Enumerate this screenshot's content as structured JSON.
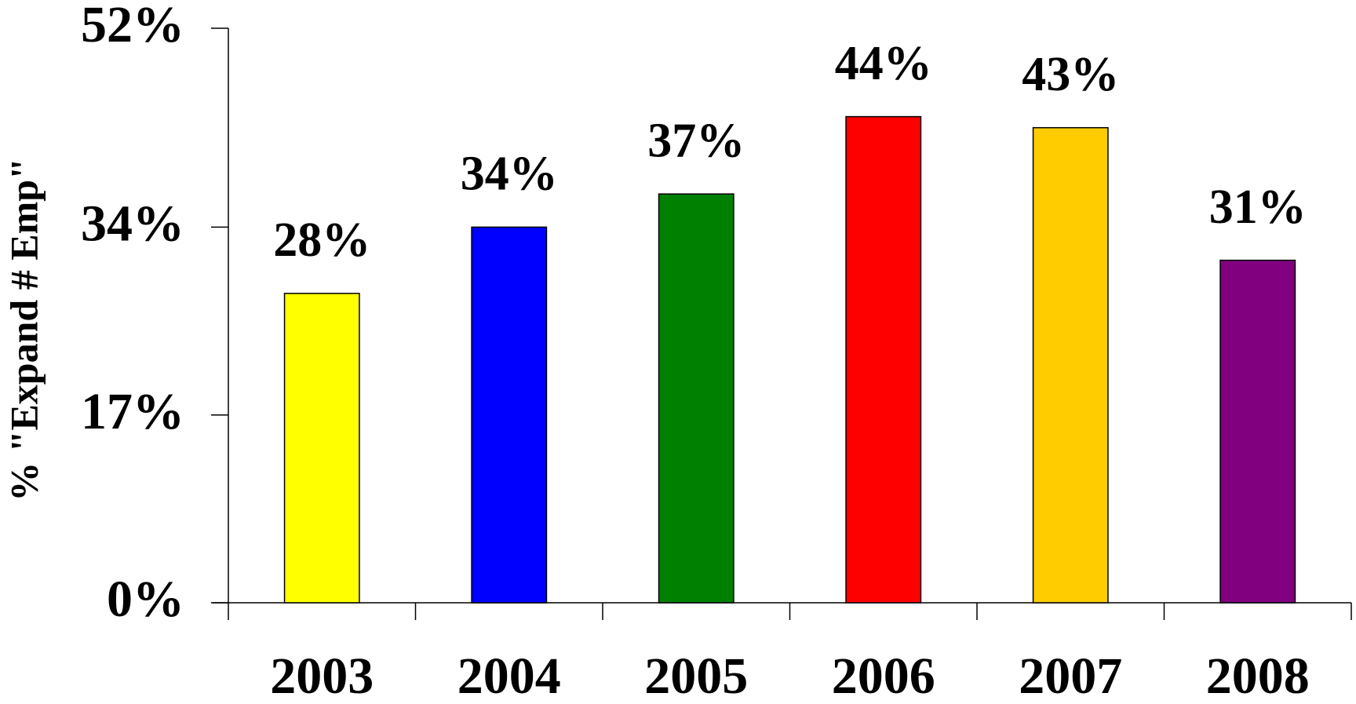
{
  "chart_data": {
    "type": "bar",
    "y_label": "% \"Expand # Emp\"",
    "categories": [
      "2003",
      "2004",
      "2005",
      "2006",
      "2007",
      "2008"
    ],
    "values": [
      28,
      34,
      37,
      44,
      43,
      31
    ],
    "value_labels": [
      "28%",
      "34%",
      "37%",
      "44%",
      "43%",
      "31%"
    ],
    "colors": [
      "#ffff00",
      "#0000ff",
      "#008000",
      "#ff0000",
      "#ffcc00",
      "#800080"
    ],
    "ylim": [
      0,
      52
    ],
    "yticks": [
      {
        "value": 0,
        "label": "0%"
      },
      {
        "value": 17,
        "label": "17%"
      },
      {
        "value": 34,
        "label": "34%"
      },
      {
        "value": 52,
        "label": "52%"
      }
    ]
  }
}
